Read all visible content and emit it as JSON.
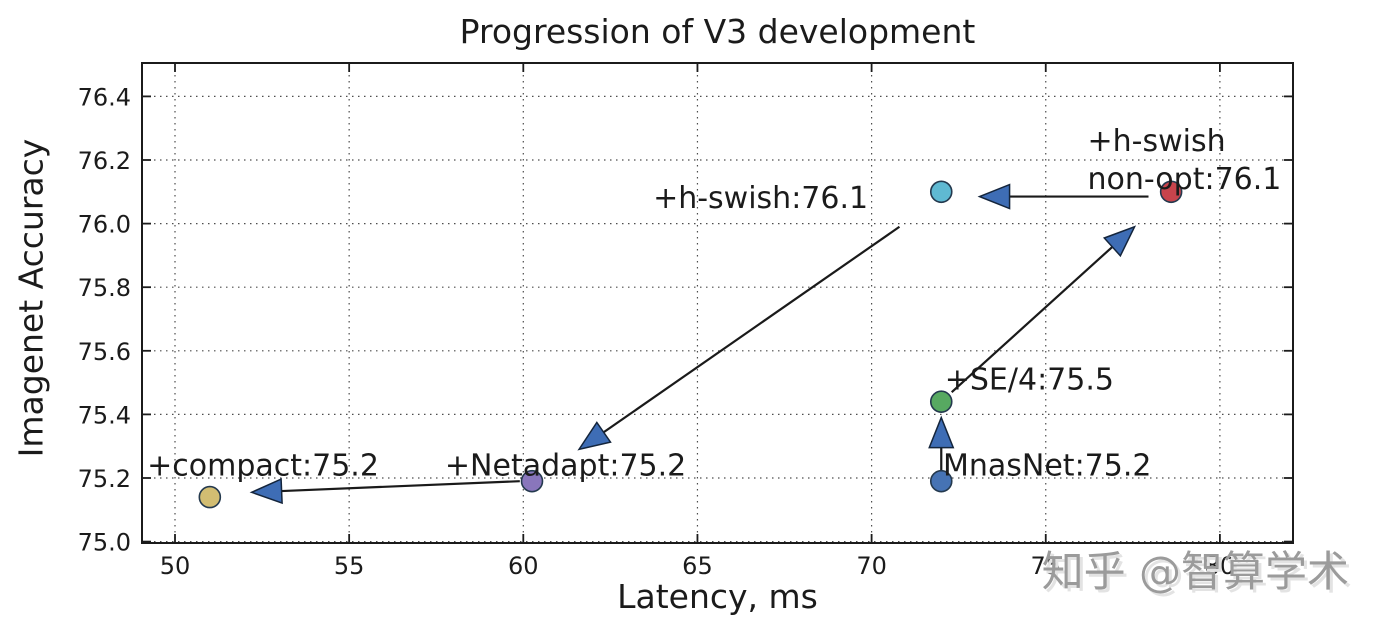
{
  "watermark": {
    "text": "知乎 @智算学术"
  },
  "chart_data": {
    "type": "scatter",
    "title": "Progression of V3 development",
    "xlabel": "Latency, ms",
    "ylabel": "Imagenet Accuracy",
    "xlim": [
      49.0,
      82.1
    ],
    "ylim": [
      75.0,
      76.5
    ],
    "x_ticks": [
      50,
      55,
      60,
      65,
      70,
      75,
      80
    ],
    "y_ticks": [
      75.0,
      75.2,
      75.4,
      75.6,
      75.8,
      76.0,
      76.2,
      76.4
    ],
    "grid": "dotted",
    "legend": "none",
    "points": [
      {
        "id": "mnasnet",
        "label": "MnasNet",
        "accuracy": 75.2,
        "x": 72.0,
        "y": 75.19,
        "color": "#4673b4"
      },
      {
        "id": "se4",
        "label": "+SE/4",
        "accuracy": 75.5,
        "x": 72.0,
        "y": 75.44,
        "color": "#57a961"
      },
      {
        "id": "hswish",
        "label": "+h-swish",
        "accuracy": 76.1,
        "x": 72.0,
        "y": 76.1,
        "color": "#5fb9d2"
      },
      {
        "id": "hswish-nonopt",
        "label": "+h-swish non-opt",
        "accuracy": 76.1,
        "x": 78.6,
        "y": 76.1,
        "color": "#c8444c"
      },
      {
        "id": "netadapt",
        "label": "+Netadapt",
        "accuracy": 75.2,
        "x": 60.25,
        "y": 75.19,
        "color": "#8976bc"
      },
      {
        "id": "compact",
        "label": "+compact",
        "accuracy": 75.2,
        "x": 51.0,
        "y": 75.14,
        "color": "#d2bd72"
      }
    ],
    "annotations": [
      {
        "id": "compact",
        "lines": [
          "+compact:75.2"
        ],
        "x": 49.2,
        "y": 75.24,
        "anchor": "start"
      },
      {
        "id": "netadapt",
        "lines": [
          "+Netadapt:75.2"
        ],
        "x": 57.75,
        "y": 75.24,
        "anchor": "start"
      },
      {
        "id": "mnasnet",
        "lines": [
          "MnasNet:75.2"
        ],
        "x": 72.05,
        "y": 75.24,
        "anchor": "start"
      },
      {
        "id": "se4",
        "lines": [
          "+SE/4:75.5"
        ],
        "x": 72.1,
        "y": 75.51,
        "anchor": "start"
      },
      {
        "id": "hswish",
        "lines": [
          "+h-swish:76.1"
        ],
        "x": 69.9,
        "y": 76.08,
        "anchor": "end"
      },
      {
        "id": "hswish-nonopt",
        "lines": [
          "+h-swish",
          "non-opt:76.1"
        ],
        "x": 76.2,
        "y": 76.26,
        "anchor": "start"
      }
    ],
    "arrows": [
      {
        "id": "netadapt-to-compact",
        "from": [
          59.9,
          75.19
        ],
        "to": [
          52.2,
          75.155
        ]
      },
      {
        "id": "hswish-to-netadapt",
        "from": [
          70.8,
          75.99
        ],
        "to": [
          61.6,
          75.29
        ]
      },
      {
        "id": "mnasnet-to-se4",
        "from": [
          72.0,
          75.22
        ],
        "to": [
          72.0,
          75.39
        ]
      },
      {
        "id": "se4-to-nonopt",
        "from": [
          72.3,
          75.47
        ],
        "to": [
          77.55,
          75.99
        ]
      },
      {
        "id": "nonopt-to-hswish",
        "from": [
          77.95,
          76.085
        ],
        "to": [
          73.1,
          76.085
        ]
      }
    ],
    "colors": {
      "arrow_head": "#3e6db5",
      "arrow_shaft": "#1a1a1a",
      "point_edge": "#24394e",
      "text": "#1b1b1b",
      "watermark": "#9b9b9b"
    }
  }
}
